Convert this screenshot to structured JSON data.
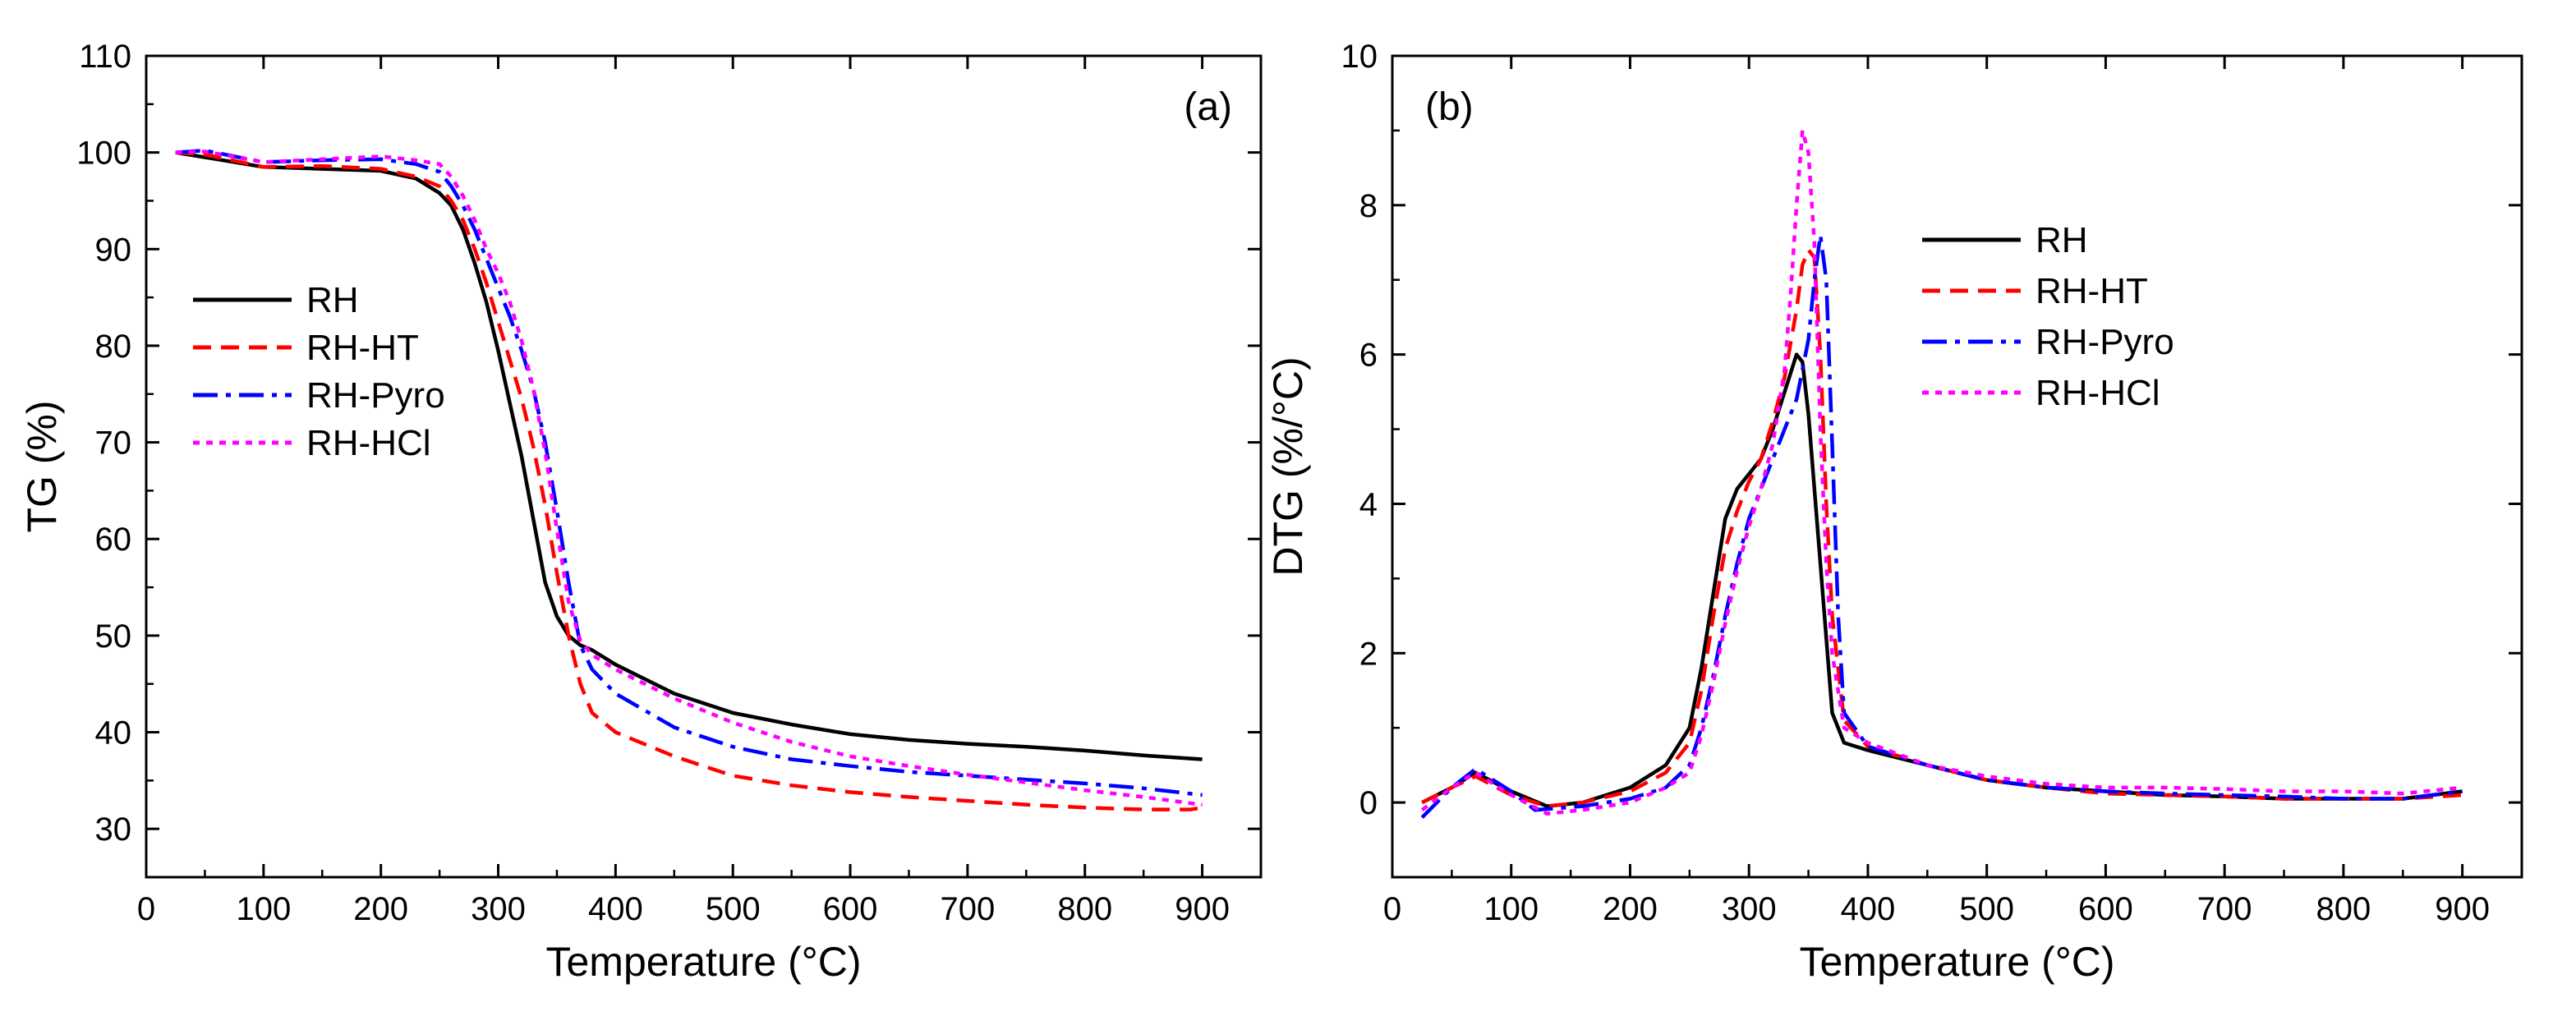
{
  "chart_data": [
    {
      "type": "line",
      "panel_label": "(a)",
      "title": "",
      "xlabel": "Temperature (°C)",
      "ylabel": "TG (%)",
      "xlim": [
        0,
        950
      ],
      "ylim": [
        25,
        110
      ],
      "xticks": [
        0,
        100,
        200,
        300,
        400,
        500,
        600,
        700,
        800,
        900
      ],
      "yticks": [
        30,
        40,
        50,
        60,
        70,
        80,
        90,
        100,
        110
      ],
      "legend_position": "middle-left",
      "grid": false,
      "series": [
        {
          "name": "RH",
          "color": "#000000",
          "style": "solid",
          "x": [
            25,
            50,
            100,
            150,
            200,
            230,
            250,
            260,
            270,
            280,
            290,
            300,
            310,
            320,
            330,
            340,
            350,
            360,
            370,
            380,
            400,
            450,
            500,
            550,
            600,
            650,
            700,
            750,
            800,
            850,
            900
          ],
          "y": [
            100,
            99.5,
            98.5,
            98.3,
            98.1,
            97.3,
            95.8,
            94.5,
            92,
            88.5,
            84.5,
            79.5,
            74,
            68.5,
            62,
            55.5,
            52,
            50,
            49,
            48.5,
            47,
            44,
            42,
            40.8,
            39.8,
            39.2,
            38.8,
            38.5,
            38.1,
            37.6,
            37.2
          ]
        },
        {
          "name": "RH-HT",
          "color": "#ff0000",
          "style": "dashed",
          "x": [
            25,
            50,
            100,
            150,
            200,
            230,
            250,
            260,
            270,
            280,
            290,
            300,
            310,
            320,
            330,
            340,
            350,
            360,
            370,
            380,
            400,
            450,
            500,
            550,
            600,
            650,
            700,
            750,
            800,
            850,
            890,
            900
          ],
          "y": [
            100,
            99.8,
            98.5,
            98.6,
            98.3,
            97.5,
            96.5,
            95,
            93,
            90,
            86.5,
            82.5,
            78.5,
            74.5,
            69.5,
            63.5,
            56.5,
            50,
            45,
            42,
            40,
            37.5,
            35.5,
            34.5,
            33.8,
            33.3,
            32.9,
            32.5,
            32.2,
            32,
            32,
            32.2
          ]
        },
        {
          "name": "RH-Pyro",
          "color": "#0000ff",
          "style": "dashdot",
          "x": [
            25,
            50,
            100,
            150,
            200,
            230,
            250,
            260,
            270,
            280,
            290,
            300,
            310,
            320,
            330,
            340,
            350,
            360,
            370,
            380,
            400,
            450,
            500,
            550,
            600,
            650,
            700,
            750,
            800,
            850,
            900
          ],
          "y": [
            100,
            100.2,
            99,
            99.2,
            99.3,
            98.8,
            98,
            96.5,
            94.5,
            92,
            89,
            86,
            83,
            79.5,
            75.5,
            70,
            63,
            55.5,
            49,
            46.5,
            44,
            40.5,
            38.5,
            37.2,
            36.5,
            35.9,
            35.5,
            35.1,
            34.7,
            34.2,
            33.5
          ]
        },
        {
          "name": "RH-HCl",
          "color": "#ff00ff",
          "style": "dotted",
          "x": [
            25,
            50,
            100,
            150,
            200,
            230,
            250,
            260,
            270,
            280,
            290,
            300,
            310,
            320,
            330,
            340,
            350,
            360,
            370,
            380,
            400,
            450,
            500,
            550,
            600,
            650,
            700,
            750,
            800,
            850,
            900
          ],
          "y": [
            100,
            100.1,
            99,
            99.3,
            99.6,
            99.2,
            98.8,
            97.5,
            95.5,
            93,
            90,
            87.5,
            84.5,
            80.5,
            75.5,
            69,
            61,
            53.5,
            49.5,
            48,
            46.5,
            43.5,
            41,
            39,
            37.5,
            36.5,
            35.6,
            34.8,
            34,
            33.3,
            32.5
          ]
        }
      ]
    },
    {
      "type": "line",
      "panel_label": "(b)",
      "title": "",
      "xlabel": "Temperature (°C)",
      "ylabel": "DTG (%/°C)",
      "xlim": [
        0,
        950
      ],
      "ylim": [
        -1,
        10
      ],
      "xticks": [
        0,
        100,
        200,
        300,
        400,
        500,
        600,
        700,
        800,
        900
      ],
      "yticks": [
        0,
        2,
        4,
        6,
        8,
        10
      ],
      "legend_position": "upper-center-right",
      "grid": false,
      "series": [
        {
          "name": "RH",
          "color": "#000000",
          "style": "solid",
          "x": [
            25,
            50,
            70,
            100,
            130,
            160,
            200,
            230,
            250,
            260,
            270,
            280,
            290,
            300,
            310,
            320,
            330,
            340,
            345,
            350,
            360,
            370,
            380,
            400,
            450,
            500,
            550,
            600,
            650,
            700,
            750,
            800,
            850,
            900
          ],
          "y": [
            0.0,
            0.2,
            0.4,
            0.15,
            -0.05,
            0.0,
            0.2,
            0.5,
            1.0,
            1.8,
            2.8,
            3.8,
            4.2,
            4.4,
            4.6,
            5.0,
            5.5,
            6.0,
            5.9,
            5.2,
            3.2,
            1.2,
            0.8,
            0.7,
            0.5,
            0.3,
            0.2,
            0.15,
            0.1,
            0.08,
            0.05,
            0.05,
            0.05,
            0.15
          ]
        },
        {
          "name": "RH-HT",
          "color": "#ff0000",
          "style": "dashed",
          "x": [
            25,
            50,
            70,
            100,
            130,
            160,
            200,
            230,
            250,
            260,
            270,
            280,
            290,
            300,
            310,
            320,
            330,
            340,
            345,
            350,
            355,
            360,
            365,
            370,
            380,
            400,
            450,
            500,
            550,
            600,
            650,
            700,
            750,
            800,
            850,
            900
          ],
          "y": [
            0.0,
            0.2,
            0.35,
            0.1,
            -0.05,
            0.0,
            0.15,
            0.4,
            0.8,
            1.5,
            2.5,
            3.4,
            3.9,
            4.3,
            4.6,
            5.1,
            5.7,
            6.6,
            7.2,
            7.4,
            7.3,
            6.0,
            4.0,
            2.5,
            1.1,
            0.75,
            0.5,
            0.3,
            0.2,
            0.12,
            0.1,
            0.08,
            0.05,
            0.05,
            0.05,
            0.1
          ]
        },
        {
          "name": "RH-Pyro",
          "color": "#0000ff",
          "style": "dashdot",
          "x": [
            25,
            50,
            70,
            100,
            120,
            160,
            200,
            230,
            250,
            260,
            270,
            280,
            290,
            300,
            310,
            320,
            330,
            340,
            350,
            355,
            360,
            365,
            370,
            375,
            380,
            400,
            450,
            500,
            550,
            600,
            650,
            700,
            750,
            800,
            850,
            900
          ],
          "y": [
            -0.2,
            0.2,
            0.45,
            0.15,
            -0.1,
            -0.05,
            0.05,
            0.2,
            0.5,
            1.0,
            1.7,
            2.5,
            3.2,
            3.8,
            4.2,
            4.6,
            5.0,
            5.4,
            6.2,
            7.0,
            7.6,
            7.0,
            4.8,
            2.5,
            1.2,
            0.75,
            0.5,
            0.3,
            0.2,
            0.15,
            0.12,
            0.1,
            0.08,
            0.05,
            0.05,
            0.15
          ]
        },
        {
          "name": "RH-HCl",
          "color": "#ff00ff",
          "style": "dotted",
          "x": [
            25,
            50,
            70,
            100,
            130,
            160,
            200,
            230,
            250,
            260,
            270,
            280,
            290,
            300,
            310,
            320,
            330,
            335,
            340,
            345,
            350,
            355,
            360,
            365,
            370,
            380,
            400,
            450,
            500,
            550,
            600,
            650,
            700,
            750,
            800,
            850,
            900
          ],
          "y": [
            -0.1,
            0.2,
            0.4,
            0.1,
            -0.15,
            -0.1,
            0.0,
            0.2,
            0.4,
            0.9,
            1.6,
            2.4,
            3.1,
            3.7,
            4.2,
            4.8,
            5.8,
            6.8,
            8.0,
            9.0,
            8.7,
            7.5,
            5.0,
            3.2,
            2.0,
            1.0,
            0.8,
            0.5,
            0.35,
            0.25,
            0.2,
            0.2,
            0.18,
            0.15,
            0.15,
            0.12,
            0.2
          ]
        }
      ]
    }
  ]
}
